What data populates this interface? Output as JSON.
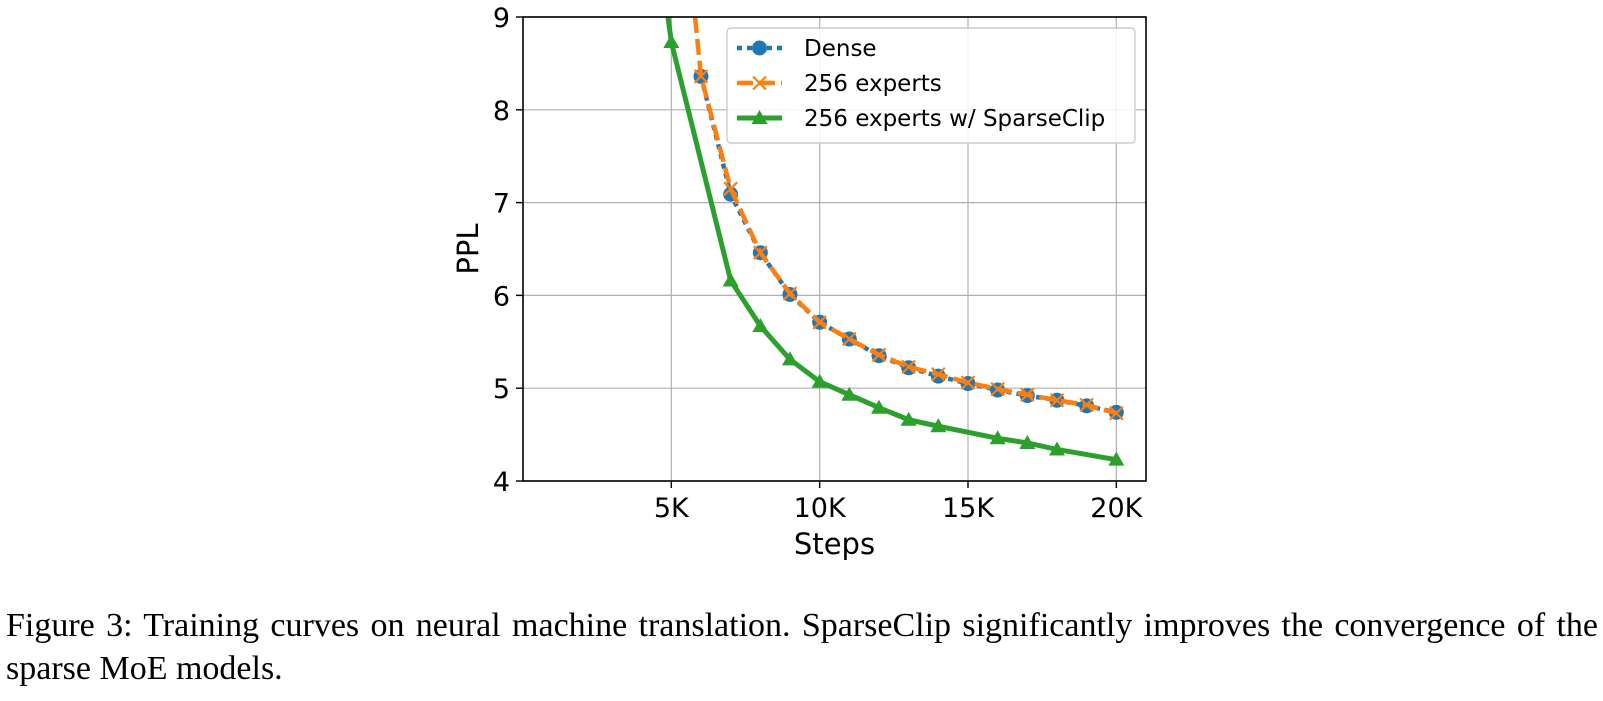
{
  "chart_data": {
    "type": "line",
    "xlabel": "Steps",
    "ylabel": "PPL",
    "xlim": [
      0,
      21000
    ],
    "ylim": [
      4,
      9
    ],
    "xticks": [
      5000,
      10000,
      15000,
      20000
    ],
    "xtick_labels": [
      "5K",
      "10K",
      "15K",
      "20K"
    ],
    "yticks": [
      4,
      5,
      6,
      7,
      8,
      9
    ],
    "ytick_labels": [
      "4",
      "5",
      "6",
      "7",
      "8",
      "9"
    ],
    "grid": true,
    "legend_position": "top-right",
    "series": [
      {
        "name": "Dense",
        "color": "#1f77b4",
        "line_style": "dotted",
        "marker": "circle",
        "x": [
          6000,
          7000,
          8000,
          9000,
          10000,
          11000,
          12000,
          13000,
          14000,
          15000,
          16000,
          17000,
          18000,
          19000,
          20000
        ],
        "y": [
          8.36,
          7.09,
          6.46,
          6.01,
          5.71,
          5.53,
          5.35,
          5.22,
          5.13,
          5.05,
          4.98,
          4.92,
          4.87,
          4.81,
          4.74
        ]
      },
      {
        "name": "256 experts",
        "color": "#ff7f0e",
        "line_style": "dashed",
        "marker": "x",
        "x": [
          5800,
          6000,
          7000,
          8000,
          9000,
          10000,
          11000,
          12000,
          13000,
          14000,
          15000,
          16000,
          17000,
          18000,
          19000,
          20000
        ],
        "y": [
          9.0,
          8.36,
          7.15,
          6.46,
          6.02,
          5.71,
          5.53,
          5.36,
          5.23,
          5.15,
          5.06,
          4.99,
          4.93,
          4.87,
          4.82,
          4.73
        ]
      },
      {
        "name": "256 experts w/ SparseClip",
        "color": "#2ca02c",
        "line_style": "solid",
        "marker": "triangle",
        "x": [
          5000,
          7000,
          8000,
          9000,
          10000,
          11000,
          12000,
          13000,
          14000,
          16000,
          17000,
          18000,
          20000
        ],
        "y": [
          8.73,
          6.16,
          5.67,
          5.31,
          5.07,
          4.93,
          4.79,
          4.66,
          4.59,
          4.46,
          4.41,
          4.34,
          4.23
        ]
      }
    ]
  },
  "caption": "Figure 3: Training curves on neural machine translation. SparseClip significantly improves the convergence of the sparse MoE models."
}
